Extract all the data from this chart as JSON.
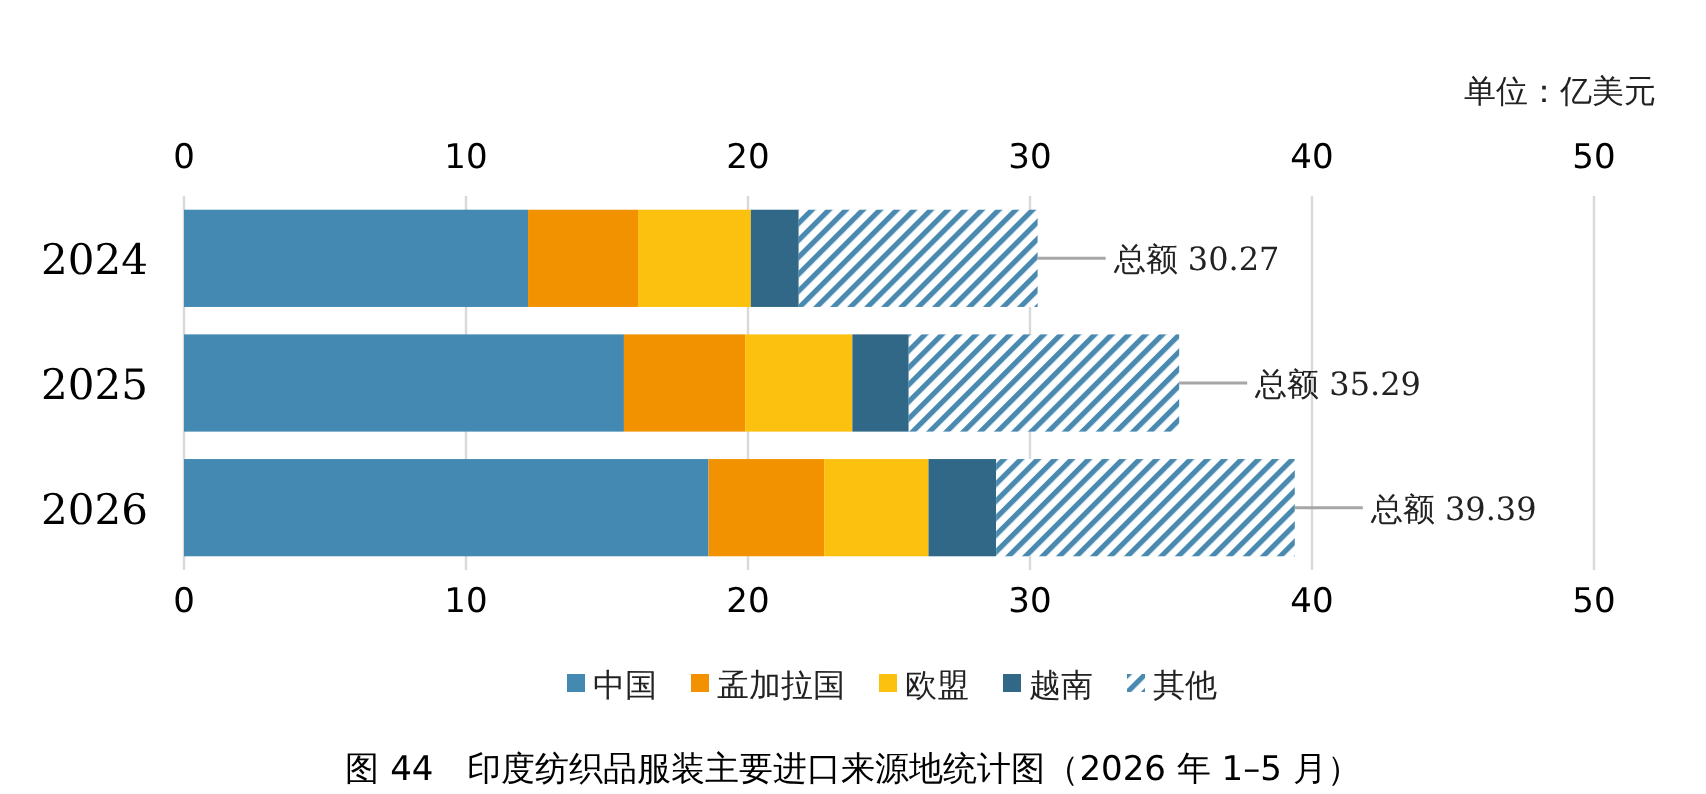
{
  "chart_data": {
    "type": "bar",
    "orientation": "horizontal",
    "stacked": true,
    "title": "图 44　印度纺织品服装主要进口来源地统计图（2026 年 1–5 月）",
    "annotations": [
      "单位：亿美元"
    ],
    "categories": [
      "2024",
      "2025",
      "2026"
    ],
    "series": [
      {
        "name": "中国",
        "color": "#4389b2",
        "values": [
          12.2,
          15.6,
          18.6
        ]
      },
      {
        "name": "孟加拉国",
        "color": "#f39200",
        "values": [
          3.9,
          4.3,
          4.1
        ]
      },
      {
        "name": "欧盟",
        "color": "#fcc10f",
        "values": [
          4.0,
          3.8,
          3.7
        ]
      },
      {
        "name": "越南",
        "color": "#316887",
        "values": [
          1.7,
          2.0,
          2.4
        ]
      },
      {
        "name": "其他",
        "color": "#4a8ab0",
        "values": [
          8.47,
          9.59,
          10.59
        ]
      }
    ],
    "totals": [
      "总额 30.27",
      "总额 35.29",
      "总额 39.39"
    ],
    "xlim": [
      0,
      50
    ],
    "xticks": [
      0,
      10,
      20,
      30,
      40,
      50
    ],
    "x2lim": [
      0,
      50
    ],
    "x2ticks": [
      0,
      10,
      20,
      30,
      40,
      50
    ],
    "grid": "x",
    "legend": "bottom"
  }
}
